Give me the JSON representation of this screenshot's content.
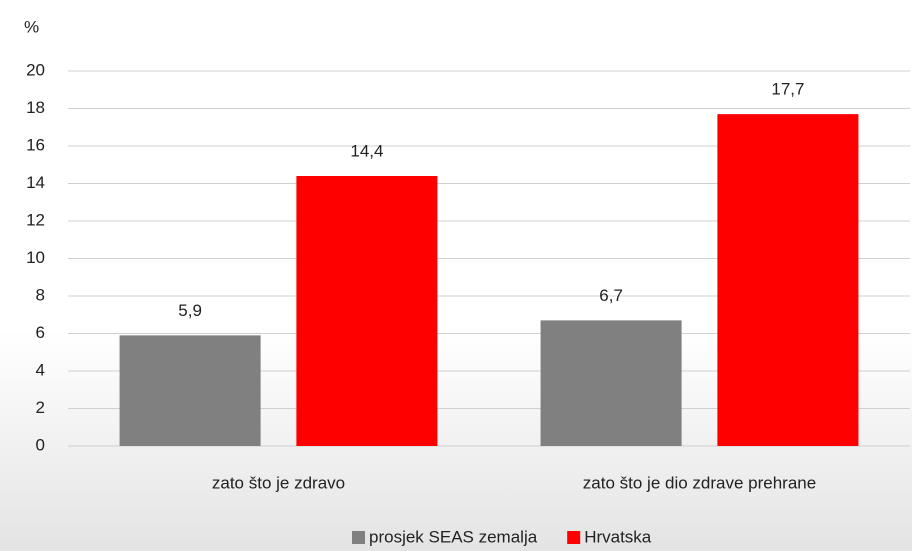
{
  "chart_data": {
    "type": "bar",
    "y_label": "%",
    "categories": [
      "zato što je zdravo",
      "zato što je dio zdrave prehrane"
    ],
    "series": [
      {
        "name": "prosjek SEAS zemalja",
        "color": "#808080",
        "values": [
          5.9,
          6.7
        ],
        "value_labels": [
          "5,9",
          "6,7"
        ]
      },
      {
        "name": "Hrvatska",
        "color": "#ff0000",
        "values": [
          14.4,
          17.7
        ],
        "value_labels": [
          "14,4",
          "17,7"
        ]
      }
    ],
    "ylim": [
      0,
      20
    ],
    "yticks": [
      0,
      2,
      4,
      6,
      8,
      10,
      12,
      14,
      16,
      18,
      20
    ],
    "grid": true,
    "legend": "bottom"
  }
}
